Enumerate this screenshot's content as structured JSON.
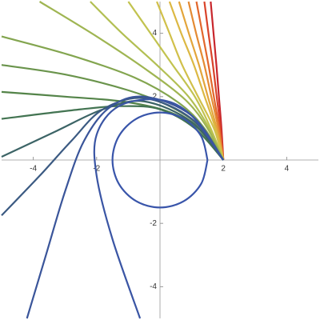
{
  "chart_data": {
    "type": "line",
    "xlim": [
      -5,
      5
    ],
    "ylim": [
      -5,
      5
    ],
    "xticks": [
      -4,
      -2,
      2,
      4
    ],
    "yticks": [
      -4,
      -2,
      2,
      4
    ],
    "series": [
      {
        "color": "#c8262c",
        "x": [
          2,
          1.94,
          1.86,
          1.78,
          1.69,
          1.6
        ],
        "values": [
          0,
          1,
          2,
          3,
          4,
          5
        ]
      },
      {
        "color": "#d9432a",
        "x": [
          2,
          1.91,
          1.79,
          1.67,
          1.53,
          1.4
        ],
        "values": [
          0,
          1,
          2,
          3,
          4,
          5
        ]
      },
      {
        "color": "#e2672c",
        "x": [
          2,
          1.87,
          1.7,
          1.53,
          1.34,
          1.15
        ],
        "values": [
          0,
          1,
          2,
          3,
          4,
          5
        ]
      },
      {
        "color": "#e48a33",
        "x": [
          2,
          1.84,
          1.62,
          1.4,
          1.14,
          0.9
        ],
        "values": [
          0,
          1,
          2,
          3,
          4,
          5
        ]
      },
      {
        "color": "#e3a53b",
        "x": [
          2,
          1.79,
          1.51,
          1.23,
          0.91,
          0.6
        ],
        "values": [
          0,
          1,
          2,
          3,
          4,
          5
        ]
      },
      {
        "color": "#dcb843",
        "x": [
          2,
          1.75,
          1.41,
          1.07,
          0.67,
          0.3
        ],
        "values": [
          0,
          1,
          2,
          3,
          4,
          5
        ]
      },
      {
        "color": "#d1c04a",
        "x": [
          2,
          1.7,
          1.2,
          0.7,
          0.3,
          -0.1
        ],
        "values": [
          0,
          1,
          2,
          3,
          4,
          5
        ]
      },
      {
        "color": "#c2c34f",
        "x": [
          2,
          1.6,
          1.1,
          0.4,
          -0.3,
          -1.0
        ],
        "values": [
          0,
          1,
          2,
          3,
          4,
          5
        ]
      },
      {
        "color": "#b2bf52",
        "x": [
          2,
          1.55,
          0.9,
          -0.1,
          -1.2,
          -2.2
        ],
        "values": [
          0,
          1,
          2,
          3,
          4,
          5
        ]
      },
      {
        "color": "#9fb552",
        "x": [
          2,
          1.5,
          0.8,
          -0.5,
          -2,
          -3.8
        ],
        "values": [
          0,
          1,
          1.9,
          2.9,
          3.9,
          5
        ]
      },
      {
        "color": "#83a54f",
        "x": [
          2,
          1.4,
          0.6,
          -0.8,
          -2.8,
          -5
        ],
        "values": [
          0,
          1,
          1.8,
          2.6,
          3.3,
          3.9
        ]
      },
      {
        "color": "#6a944c",
        "x": [
          2,
          1.3,
          0.4,
          -1,
          -3,
          -5
        ],
        "values": [
          0,
          1,
          1.65,
          2.2,
          2.7,
          3.0
        ]
      },
      {
        "color": "#548449",
        "x": [
          2,
          1.2,
          0.2,
          -1.2,
          -3,
          -5
        ],
        "values": [
          0,
          1,
          1.55,
          1.85,
          2.0,
          2.15
        ]
      },
      {
        "color": "#437452",
        "x": [
          2,
          1.1,
          0,
          -1.2,
          -2.5,
          -5
        ],
        "values": [
          0,
          1,
          1.6,
          1.7,
          1.6,
          1.3
        ]
      },
      {
        "color": "#3c6466",
        "x": [
          2,
          1,
          -0.5,
          -1.8,
          -3.3,
          -5
        ],
        "values": [
          0,
          1.2,
          1.85,
          1.6,
          0.9,
          0.1
        ]
      },
      {
        "color": "#3b5a82",
        "x": [
          2,
          1,
          -0.5,
          -1.8,
          -2.8,
          -3.8,
          -5
        ],
        "values": [
          0,
          1.3,
          1.95,
          1.6,
          0.6,
          -0.5,
          -1.75
        ]
      },
      {
        "color": "#3a559a",
        "x": [
          2,
          1,
          -0.5,
          -1.6,
          -2.4,
          -3.0,
          -3.6,
          -4.2
        ],
        "values": [
          0,
          1.4,
          2.0,
          1.65,
          0.6,
          -1,
          -3,
          -5
        ]
      },
      {
        "color": "#3a55a4",
        "x": [
          2,
          1,
          0,
          -1.3,
          -2,
          -2.0,
          -1.5,
          -0.63
        ],
        "values": [
          0,
          1.4,
          1.9,
          1.7,
          0.8,
          -0.5,
          -2.5,
          -5
        ]
      },
      {
        "color": "#3955aa",
        "x": [
          1.5,
          1.3,
          0.75,
          0,
          -0.75,
          -1.3,
          -1.5,
          -1.3,
          -0.75,
          0,
          0.75,
          1.3,
          1.5
        ],
        "values": [
          0,
          0.75,
          1.3,
          1.5,
          1.3,
          0.75,
          0,
          -0.75,
          -1.3,
          -1.5,
          -1.3,
          -0.75,
          0
        ]
      }
    ]
  }
}
